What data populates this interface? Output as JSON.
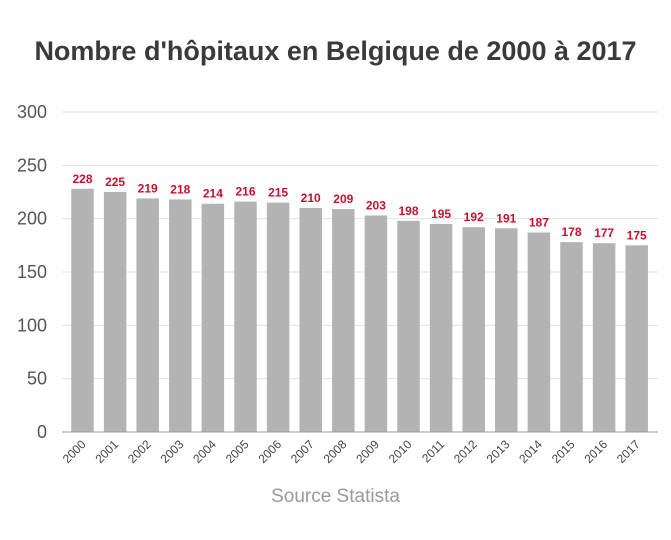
{
  "chart_data": {
    "type": "bar",
    "title": "Nombre d'hôpitaux en Belgique de 2000 à 2017",
    "xlabel": "",
    "ylabel": "",
    "ylim": [
      0,
      300
    ],
    "yticks": [
      0,
      50,
      100,
      150,
      200,
      250,
      300
    ],
    "grid": true,
    "categories": [
      "2000",
      "2001",
      "2002",
      "2003",
      "2004",
      "2005",
      "2006",
      "2007",
      "2008",
      "2009",
      "2010",
      "2011",
      "2012",
      "2013",
      "2014",
      "2015",
      "2016",
      "2017"
    ],
    "values": [
      228,
      225,
      219,
      218,
      214,
      216,
      215,
      210,
      209,
      203,
      198,
      195,
      192,
      191,
      187,
      178,
      177,
      175
    ],
    "data_labels": [
      "228",
      "225",
      "219",
      "218",
      "214",
      "216",
      "215",
      "210",
      "209",
      "203",
      "198",
      "195",
      "192",
      "191",
      "187",
      "178",
      "177",
      "175"
    ],
    "source": "Source Statista"
  },
  "colors": {
    "bar": "#b3b3b3",
    "data_label": "#c8102e",
    "grid": "#e2e2e2",
    "axis": "#999999"
  }
}
